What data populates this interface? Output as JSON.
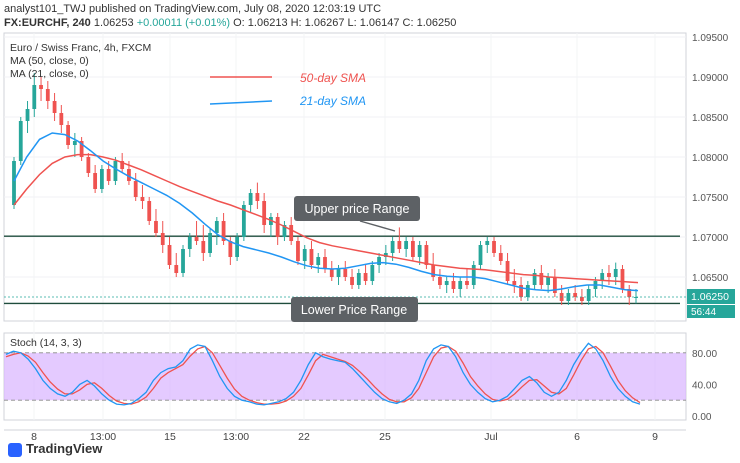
{
  "header": {
    "line1": "analyst101_TWJ published on TradingView.com, July 08, 2020 12:03:19 UTC",
    "symbol": "FX:EURCHF, 240",
    "last": "1.06253",
    "change": "+0.00011 (+0.01%)",
    "ohlc": "O: 1.06213  H: 1.06267  L: 1.06147  C: 1.06250"
  },
  "chart_labels": {
    "pair": "Euro / Swiss Franc, 4h, FXCM",
    "ma50": "MA (50, close, 0)",
    "ma21": "MA (21, close, 0)",
    "stoch": "Stoch (14, 3, 3)",
    "brand": "TradingView"
  },
  "colors": {
    "up": "#26a69a",
    "down": "#ef5350",
    "ma50": "#ef5350",
    "ma21": "#2196f3",
    "range_line": "#1f4d3d",
    "stoch_band": "#d9b3ff",
    "stoch_k": "#2196f3",
    "stoch_d": "#ef5350"
  },
  "chart_data": {
    "type": "candlestick",
    "title": "Euro / Swiss Franc, 4h, FXCM",
    "ylim": [
      1.0595,
      1.0955
    ],
    "y_ticks": [
      "1.09500",
      "1.09000",
      "1.08500",
      "1.08000",
      "1.07500",
      "1.07000",
      "1.06500"
    ],
    "x_ticks": [
      "8",
      "13:00",
      "15",
      "13:00",
      "22",
      "25",
      "Jul",
      "6",
      "9"
    ],
    "current_price": "1.06250",
    "countdown": "56:44",
    "legend": [
      {
        "label": "50-day SMA",
        "color": "#ef5350"
      },
      {
        "label": "21-day SMA",
        "color": "#2196f3"
      }
    ],
    "annotations": [
      {
        "text": "Upper price Range",
        "level": 1.0701
      },
      {
        "text": "Lower Price Range",
        "level": 1.0617
      }
    ],
    "candles": [
      [
        1.074,
        1.08,
        1.0735,
        1.0795
      ],
      [
        1.0795,
        1.085,
        1.079,
        1.0845
      ],
      [
        1.0845,
        1.087,
        1.083,
        1.086
      ],
      [
        1.086,
        1.0905,
        1.085,
        1.089
      ],
      [
        1.089,
        1.09,
        1.087,
        1.0885
      ],
      [
        1.0885,
        1.0895,
        1.086,
        1.087
      ],
      [
        1.087,
        1.088,
        1.0845,
        1.0855
      ],
      [
        1.0855,
        1.0865,
        1.083,
        1.084
      ],
      [
        1.084,
        1.0845,
        1.081,
        1.0815
      ],
      [
        1.0815,
        1.083,
        1.08,
        1.082
      ],
      [
        1.082,
        1.0825,
        1.0795,
        1.08
      ],
      [
        1.08,
        1.0805,
        1.0775,
        1.078
      ],
      [
        1.078,
        1.079,
        1.0755,
        1.076
      ],
      [
        1.076,
        1.079,
        1.0755,
        1.0785
      ],
      [
        1.0785,
        1.0795,
        1.0765,
        1.077
      ],
      [
        1.077,
        1.08,
        1.0765,
        1.0795
      ],
      [
        1.0795,
        1.0805,
        1.078,
        1.0785
      ],
      [
        1.0785,
        1.0795,
        1.0765,
        1.077
      ],
      [
        1.077,
        1.078,
        1.0745,
        1.075
      ],
      [
        1.075,
        1.0765,
        1.0735,
        1.0745
      ],
      [
        1.0745,
        1.075,
        1.0715,
        1.072
      ],
      [
        1.072,
        1.0735,
        1.07,
        1.0705
      ],
      [
        1.0705,
        1.072,
        1.068,
        1.069
      ],
      [
        1.069,
        1.07,
        1.066,
        1.0665
      ],
      [
        1.0665,
        1.068,
        1.065,
        1.0655
      ],
      [
        1.0655,
        1.069,
        1.065,
        1.0685
      ],
      [
        1.0685,
        1.0705,
        1.0675,
        1.07
      ],
      [
        1.07,
        1.072,
        1.069,
        1.0695
      ],
      [
        1.0695,
        1.0715,
        1.067,
        1.068
      ],
      [
        1.068,
        1.071,
        1.0675,
        1.0705
      ],
      [
        1.0705,
        1.0725,
        1.069,
        1.072
      ],
      [
        1.072,
        1.073,
        1.069,
        1.0695
      ],
      [
        1.0695,
        1.07,
        1.0665,
        1.0675
      ],
      [
        1.0675,
        1.0705,
        1.067,
        1.07
      ],
      [
        1.07,
        1.0745,
        1.0695,
        1.074
      ],
      [
        1.074,
        1.076,
        1.073,
        1.0755
      ],
      [
        1.0755,
        1.0768,
        1.0735,
        1.0745
      ],
      [
        1.0745,
        1.0755,
        1.0705,
        1.0715
      ],
      [
        1.0715,
        1.073,
        1.07,
        1.0725
      ],
      [
        1.0725,
        1.073,
        1.069,
        1.07
      ],
      [
        1.07,
        1.072,
        1.0695,
        1.0715
      ],
      [
        1.0715,
        1.0725,
        1.069,
        1.0695
      ],
      [
        1.0695,
        1.07,
        1.0665,
        1.067
      ],
      [
        1.067,
        1.069,
        1.066,
        1.0685
      ],
      [
        1.0685,
        1.0695,
        1.066,
        1.0665
      ],
      [
        1.0665,
        1.068,
        1.0655,
        1.0675
      ],
      [
        1.0675,
        1.0685,
        1.0655,
        1.066
      ],
      [
        1.066,
        1.067,
        1.0645,
        1.065
      ],
      [
        1.065,
        1.0665,
        1.064,
        1.066
      ],
      [
        1.066,
        1.067,
        1.0645,
        1.065
      ],
      [
        1.065,
        1.066,
        1.0635,
        1.064
      ],
      [
        1.064,
        1.066,
        1.0635,
        1.0655
      ],
      [
        1.0655,
        1.0665,
        1.064,
        1.0645
      ],
      [
        1.0645,
        1.067,
        1.064,
        1.0665
      ],
      [
        1.0665,
        1.068,
        1.0655,
        1.0675
      ],
      [
        1.0675,
        1.069,
        1.0665,
        1.068
      ],
      [
        1.068,
        1.07,
        1.067,
        1.0695
      ],
      [
        1.0695,
        1.0712,
        1.068,
        1.0685
      ],
      [
        1.0685,
        1.07,
        1.0675,
        1.0695
      ],
      [
        1.0695,
        1.07,
        1.067,
        1.0675
      ],
      [
        1.0675,
        1.0695,
        1.0665,
        1.069
      ],
      [
        1.069,
        1.0695,
        1.066,
        1.0665
      ],
      [
        1.0665,
        1.068,
        1.0645,
        1.065
      ],
      [
        1.065,
        1.066,
        1.0635,
        1.064
      ],
      [
        1.064,
        1.065,
        1.063,
        1.0645
      ],
      [
        1.0645,
        1.0655,
        1.063,
        1.0635
      ],
      [
        1.0635,
        1.065,
        1.0625,
        1.0645
      ],
      [
        1.0645,
        1.066,
        1.0635,
        1.064
      ],
      [
        1.064,
        1.067,
        1.0635,
        1.0665
      ],
      [
        1.0665,
        1.0695,
        1.066,
        1.069
      ],
      [
        1.069,
        1.07,
        1.068,
        1.0695
      ],
      [
        1.0695,
        1.07,
        1.0675,
        1.068
      ],
      [
        1.068,
        1.069,
        1.0665,
        1.067
      ],
      [
        1.067,
        1.068,
        1.064,
        1.0645
      ],
      [
        1.0645,
        1.066,
        1.063,
        1.064
      ],
      [
        1.064,
        1.065,
        1.062,
        1.0625
      ],
      [
        1.0625,
        1.0645,
        1.062,
        1.064
      ],
      [
        1.064,
        1.066,
        1.0635,
        1.0655
      ],
      [
        1.0655,
        1.0665,
        1.0635,
        1.064
      ],
      [
        1.064,
        1.0655,
        1.063,
        1.065
      ],
      [
        1.065,
        1.066,
        1.0625,
        1.063
      ],
      [
        1.063,
        1.064,
        1.0615,
        1.062
      ],
      [
        1.062,
        1.0635,
        1.0615,
        1.063
      ],
      [
        1.063,
        1.064,
        1.062,
        1.0625
      ],
      [
        1.0625,
        1.0635,
        1.0615,
        1.062
      ],
      [
        1.062,
        1.064,
        1.0615,
        1.0635
      ],
      [
        1.0635,
        1.065,
        1.0625,
        1.0645
      ],
      [
        1.0645,
        1.066,
        1.0635,
        1.0655
      ],
      [
        1.0655,
        1.0665,
        1.064,
        1.065
      ],
      [
        1.065,
        1.0668,
        1.064,
        1.066
      ],
      [
        1.066,
        1.0665,
        1.063,
        1.0635
      ],
      [
        1.0635,
        1.064,
        1.0615,
        1.0625
      ],
      [
        1.0625,
        1.0635,
        1.0617,
        1.0625
      ]
    ],
    "sma50": [
      1.074,
      1.076,
      1.0778,
      1.0792,
      1.08,
      1.0803,
      1.0803,
      1.08,
      1.0796,
      1.079,
      1.0784,
      1.0777,
      1.077,
      1.0763,
      1.0757,
      1.0751,
      1.0745,
      1.074,
      1.0734,
      1.0728,
      1.0722,
      1.0715,
      1.0707,
      1.0699,
      1.0693,
      1.0689,
      1.0686,
      1.0683,
      1.068,
      1.0677,
      1.0674,
      1.0671,
      1.0668,
      1.0665,
      1.0663,
      1.0661,
      1.066,
      1.0659,
      1.0657,
      1.0655,
      1.0653,
      1.0652,
      1.065,
      1.0649,
      1.0648,
      1.0647,
      1.0646,
      1.0645,
      1.0644,
      1.0643
    ],
    "sma21": [
      1.077,
      1.08,
      1.0822,
      1.083,
      1.0828,
      1.082,
      1.0808,
      1.0795,
      1.0785,
      1.0776,
      1.0768,
      1.076,
      1.0752,
      1.0742,
      1.073,
      1.0716,
      1.0703,
      1.0694,
      1.0688,
      1.0684,
      1.068,
      1.0675,
      1.0669,
      1.0664,
      1.0661,
      1.066,
      1.0661,
      1.0664,
      1.0667,
      1.0668,
      1.0666,
      1.0662,
      1.0657,
      1.0653,
      1.0651,
      1.065,
      1.065,
      1.0648,
      1.0644,
      1.064,
      1.0636,
      1.0634,
      1.0633,
      1.0635,
      1.0638,
      1.064,
      1.064,
      1.0637,
      1.0634,
      1.0633
    ],
    "stoch": {
      "title": "Stoch (14, 3, 3)",
      "ylim": [
        0,
        100
      ],
      "y_ticks": [
        "80.00",
        "40.00",
        "0.00"
      ],
      "band": [
        20,
        80
      ],
      "k": [
        78,
        82,
        80,
        72,
        60,
        45,
        35,
        28,
        25,
        30,
        40,
        45,
        38,
        28,
        20,
        15,
        14,
        16,
        22,
        30,
        45,
        55,
        60,
        62,
        70,
        85,
        90,
        88,
        70,
        50,
        35,
        25,
        20,
        18,
        15,
        14,
        16,
        18,
        22,
        30,
        45,
        65,
        80,
        75,
        72,
        70,
        68,
        60,
        50,
        40,
        30,
        22,
        18,
        16,
        20,
        28,
        45,
        70,
        85,
        90,
        88,
        75,
        55,
        40,
        30,
        22,
        18,
        20,
        25,
        35,
        45,
        50,
        42,
        30,
        25,
        30,
        45,
        65,
        80,
        92,
        85,
        70,
        50,
        35,
        25,
        18,
        15
      ],
      "d": [
        75,
        78,
        80,
        76,
        68,
        55,
        43,
        34,
        28,
        28,
        33,
        40,
        42,
        35,
        26,
        19,
        16,
        15,
        18,
        24,
        35,
        48,
        55,
        60,
        65,
        76,
        85,
        88,
        80,
        64,
        48,
        34,
        25,
        20,
        17,
        15,
        15,
        16,
        19,
        25,
        35,
        52,
        70,
        78,
        75,
        72,
        69,
        64,
        56,
        47,
        37,
        28,
        21,
        18,
        18,
        23,
        35,
        55,
        75,
        86,
        88,
        82,
        67,
        50,
        38,
        28,
        21,
        19,
        21,
        28,
        37,
        45,
        46,
        38,
        30,
        28,
        35,
        52,
        70,
        85,
        88,
        80,
        63,
        45,
        32,
        23,
        17
      ]
    }
  }
}
